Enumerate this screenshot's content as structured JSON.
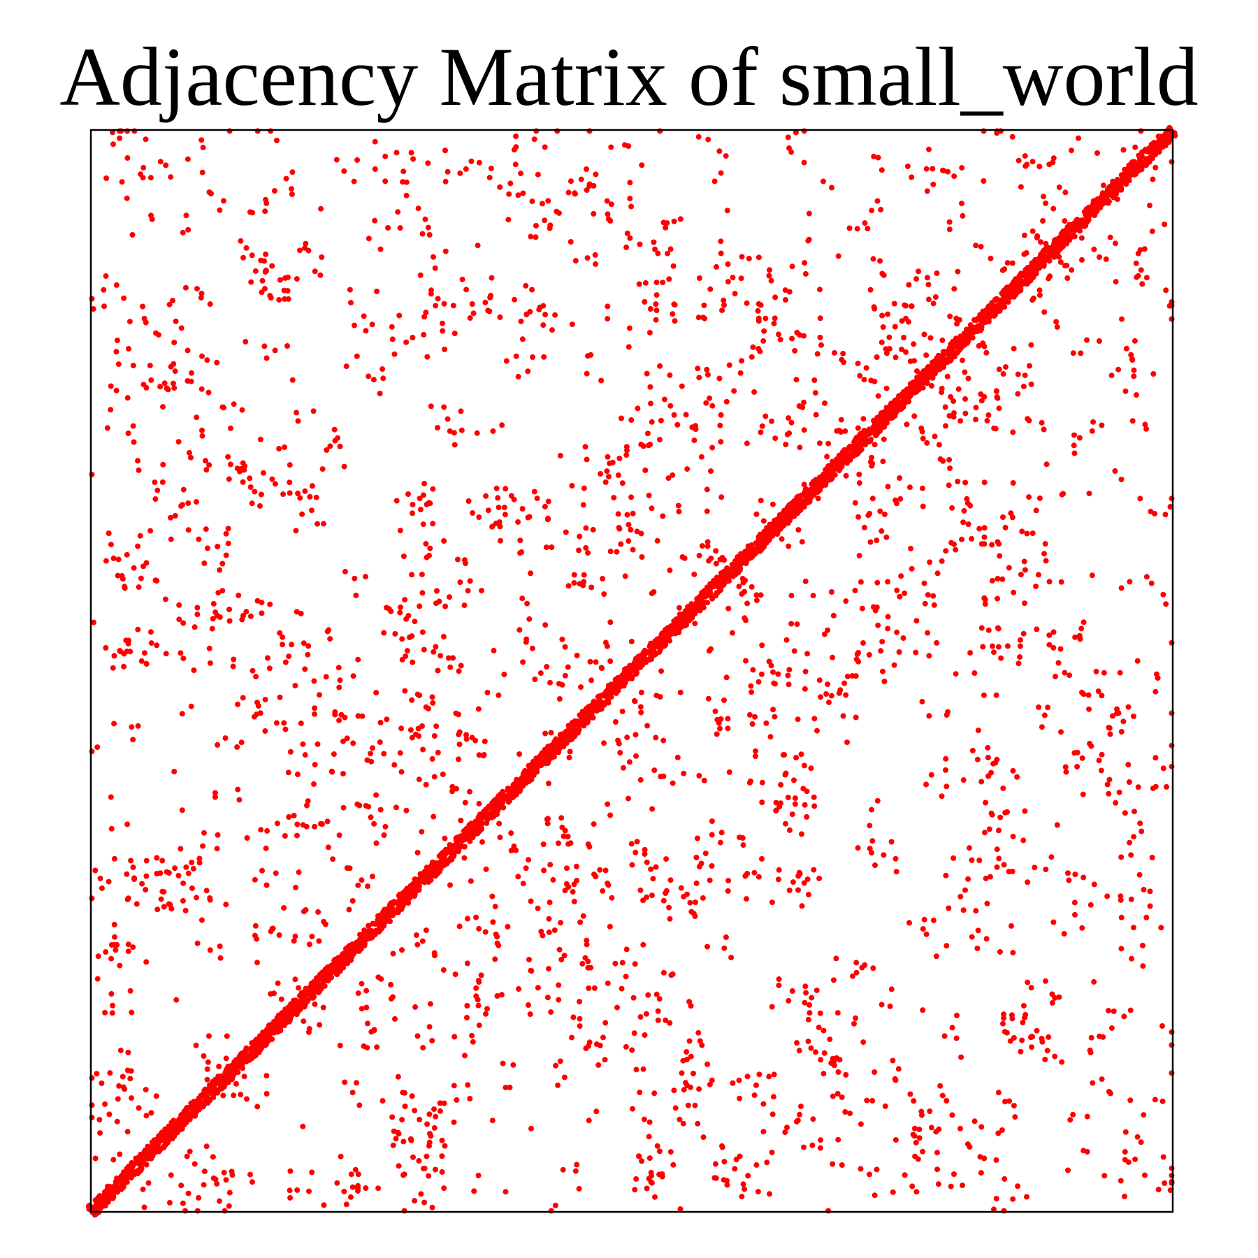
{
  "chart_data": {
    "type": "scatter",
    "title": "Adjacency Matrix of small_world",
    "xlabel": "",
    "ylabel": "",
    "xlim": [
      0,
      1000
    ],
    "ylim": [
      0,
      1000
    ],
    "axis_ticks": false,
    "grid": false,
    "marker_color": "#ff0000",
    "diagonal_band": {
      "description_of_structure": "dense edges near the main diagonal (ring lattice)",
      "from": [
        0,
        0
      ],
      "to": [
        1000,
        1000
      ],
      "half_width": 8
    },
    "generator": {
      "nodes": 1000,
      "off_diagonal_edges": 1400,
      "seed": 7
    }
  }
}
